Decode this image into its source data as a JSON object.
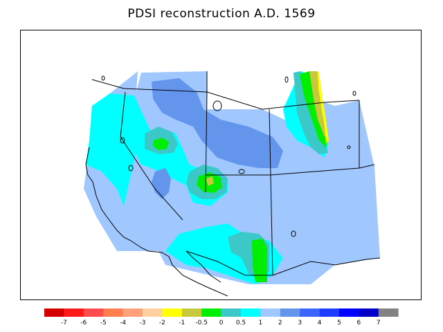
{
  "title": "PDSI reconstruction A.D. 1569",
  "colorbar": {
    "colors": [
      "#d40000",
      "#ff1a1a",
      "#ff4d4d",
      "#ff7f50",
      "#ffa07a",
      "#ffd0a0",
      "#ffff00",
      "#c8c83c",
      "#00ee00",
      "#3cc8c8",
      "#00ffff",
      "#a0c8ff",
      "#6495ed",
      "#3c64ff",
      "#1e3cff",
      "#0000ff",
      "#0000c8",
      "#828282"
    ],
    "labels": [
      "-7",
      "-6",
      "-5",
      "-4",
      "-3",
      "-2",
      "-1",
      "-0.5",
      "0",
      "0.5",
      "1",
      "2",
      "3",
      "4",
      "5",
      "6",
      "7"
    ]
  },
  "map": {
    "region": "western-united-states",
    "dominant_value_range": "1 to 2"
  }
}
